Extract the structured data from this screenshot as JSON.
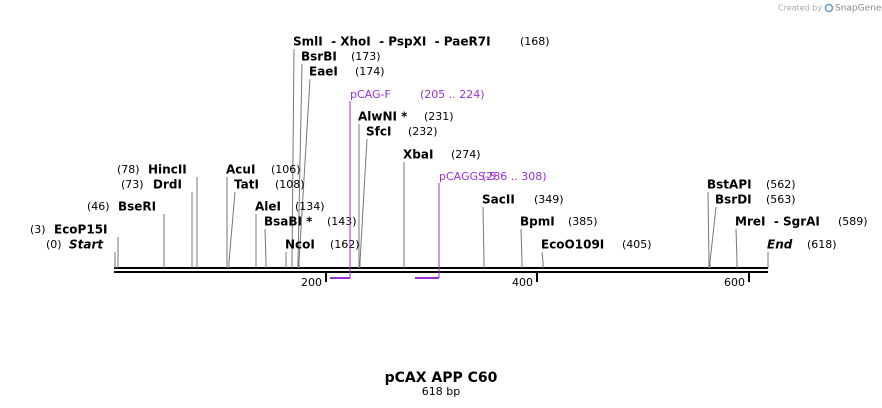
{
  "credit": {
    "text": "Created by",
    "brand": "SnapGene"
  },
  "sites": [
    {
      "name": "SmlI  - XhoI  - PspXI  - PaeR7I",
      "position": "(168)"
    },
    {
      "name": "BsrBI",
      "position": "(173)"
    },
    {
      "name": "EaeI",
      "position": "(174)"
    },
    {
      "name": "AlwNI *",
      "position": "(231)"
    },
    {
      "name": "SfcI",
      "position": "(232)"
    },
    {
      "name": "XbaI",
      "position": "(274)"
    },
    {
      "name": "SacII",
      "position": "(349)"
    },
    {
      "name": "BpmI",
      "position": "(385)"
    },
    {
      "name": "EcoO109I",
      "position": "(405)"
    },
    {
      "name": "BstAPI",
      "position": "(562)"
    },
    {
      "name": "BsrDI",
      "position": "(563)"
    },
    {
      "name": "MreI  - SgrAI",
      "position": "(589)"
    },
    {
      "name": "End",
      "position": "(618)"
    },
    {
      "name": "HincII",
      "position": "(78)"
    },
    {
      "name": "DrdI",
      "position": "(73)"
    },
    {
      "name": "BseRI",
      "position": "(46)"
    },
    {
      "name": "EcoP15I",
      "position": "(3)"
    },
    {
      "name": "Start",
      "position": "(0)"
    },
    {
      "name": "AcuI",
      "position": "(106)"
    },
    {
      "name": "TatI",
      "position": "(108)"
    },
    {
      "name": "AleI",
      "position": "(134)"
    },
    {
      "name": "BsaBI *",
      "position": "(143)"
    },
    {
      "name": "NcoI",
      "position": "(162)"
    }
  ],
  "primers": [
    {
      "name": "pCAG-F",
      "range": "(205 .. 224)"
    },
    {
      "name": "pCAGGS-5",
      "range": "(286 .. 308)"
    }
  ],
  "ruler": [
    "200",
    "400",
    "600"
  ],
  "title": "pCAX APP C60",
  "length": "618 bp"
}
